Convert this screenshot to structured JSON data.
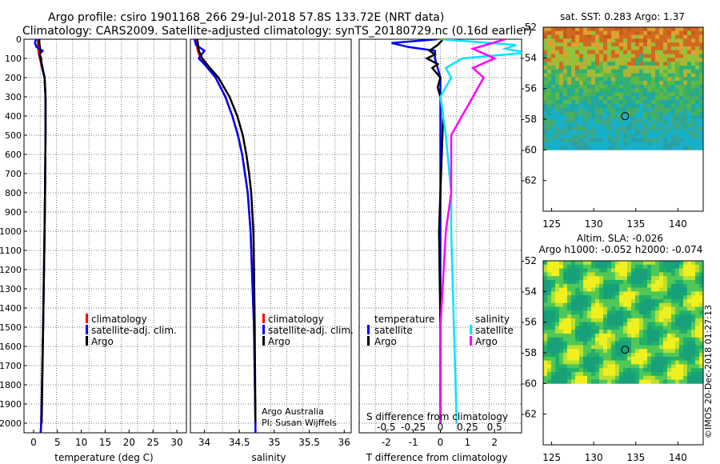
{
  "titles": {
    "line1": "Argo profile: csiro 1901168_266 29-Jul-2018 57.8S 133.72E (NRT data)",
    "line2": "Climatology: CARS2009. Satellite-adjusted climatology: synTS_20180729.nc (0.16d earlier)"
  },
  "colors": {
    "climatology": "#ff0000",
    "satellite_adj": "#0000ff",
    "argo": "#000000",
    "sat_salinity": "#00e5ff",
    "argo_salinity_diff": "#ff00ff",
    "grid": "#888888"
  },
  "depth_axis": {
    "ylim": [
      0,
      2050
    ],
    "ticks": [
      0,
      100,
      200,
      300,
      400,
      500,
      600,
      700,
      800,
      900,
      1000,
      1100,
      1200,
      1300,
      1400,
      1500,
      1600,
      1700,
      1800,
      1900,
      2000
    ]
  },
  "chart_data": [
    {
      "type": "line",
      "name": "temperature-profile",
      "xlabel": "temperature (deg C)",
      "xlim": [
        -2,
        32
      ],
      "xticks": [
        0,
        5,
        10,
        15,
        20,
        25,
        30
      ],
      "legend": {
        "placement": "lower-center",
        "entries": [
          "climatology",
          "satellite-adj. clim.",
          "Argo"
        ]
      },
      "series": [
        {
          "name": "climatology",
          "color": "#ff0000",
          "depth": [
            0,
            30,
            60,
            100,
            150,
            200,
            300,
            500,
            800,
            1000,
            1500,
            2000,
            2050
          ],
          "values": [
            0.9,
            0.9,
            1.0,
            1.3,
            1.8,
            2.3,
            2.5,
            2.5,
            2.4,
            2.3,
            2.0,
            1.6,
            1.5
          ]
        },
        {
          "name": "satellite-adj. clim.",
          "color": "#0000ff",
          "depth": [
            0,
            20,
            40,
            60,
            80,
            100,
            150,
            200,
            300,
            500,
            800,
            1000,
            1500,
            2000,
            2050
          ],
          "values": [
            0.5,
            0.3,
            0.6,
            1.9,
            1.2,
            1.5,
            1.9,
            2.3,
            2.5,
            2.5,
            2.4,
            2.3,
            2.0,
            1.6,
            1.5
          ]
        },
        {
          "name": "Argo",
          "color": "#000000",
          "depth": [
            0,
            20,
            50,
            80,
            100,
            120,
            150,
            200,
            300,
            500,
            800,
            1000,
            1500,
            2000
          ],
          "values": [
            1.2,
            1.2,
            1.4,
            1.3,
            1.6,
            1.6,
            1.8,
            2.3,
            2.5,
            2.5,
            2.4,
            2.3,
            2.0,
            1.7
          ]
        }
      ]
    },
    {
      "type": "line",
      "name": "salinity-profile",
      "xlabel": "salinity",
      "xlim": [
        33.8,
        36.1
      ],
      "xticks": [
        34,
        34.5,
        35,
        35.5,
        36
      ],
      "legend": {
        "placement": "lower-right",
        "entries": [
          "climatology",
          "satellite-adj. clim.",
          "Argo"
        ]
      },
      "annotation": [
        "Argo Australia",
        "PI: Susan Wijffels"
      ],
      "series": [
        {
          "name": "climatology",
          "color": "#ff0000",
          "depth": [
            0,
            50,
            100,
            130,
            200,
            300,
            400,
            500,
            600,
            800,
            1000,
            1500,
            2000,
            2050
          ],
          "values": [
            33.88,
            33.9,
            33.94,
            34.02,
            34.16,
            34.3,
            34.4,
            34.48,
            34.54,
            34.62,
            34.66,
            34.71,
            34.73,
            34.73
          ]
        },
        {
          "name": "satellite-adj. clim.",
          "color": "#0000ff",
          "depth": [
            0,
            30,
            60,
            100,
            130,
            200,
            300,
            400,
            500,
            600,
            800,
            1000,
            1500,
            2000,
            2050
          ],
          "values": [
            33.86,
            33.88,
            34.0,
            33.92,
            34.0,
            34.16,
            34.3,
            34.4,
            34.48,
            34.54,
            34.62,
            34.66,
            34.71,
            34.73,
            34.73
          ]
        },
        {
          "name": "Argo",
          "color": "#000000",
          "depth": [
            0,
            60,
            100,
            150,
            200,
            300,
            400,
            500,
            600,
            700,
            800,
            1000,
            1200,
            1500,
            2000
          ],
          "values": [
            33.9,
            33.92,
            33.97,
            34.08,
            34.2,
            34.36,
            34.47,
            34.55,
            34.6,
            34.64,
            34.67,
            34.7,
            34.71,
            34.72,
            34.73
          ]
        }
      ]
    },
    {
      "type": "line",
      "name": "difference-profile",
      "xlabel": "T difference from climatology",
      "xlim": [
        -3,
        3
      ],
      "xticks": [
        -2,
        -1,
        0,
        1,
        2
      ],
      "top_label": "S difference from climatology",
      "top_ticks": [
        "-0.5",
        "-0.25",
        "0",
        "0.25",
        "0.5"
      ],
      "legend": {
        "placement": "lower",
        "temperature_title": "temperature",
        "salinity_title": "salinity",
        "entries": [
          "satellite",
          "Argo",
          "satellite",
          "Argo"
        ]
      },
      "series": [
        {
          "name": "satellite (T)",
          "color": "#0000ff",
          "depth": [
            0,
            20,
            40,
            60,
            100,
            150,
            200,
            300,
            500,
            1000,
            2000
          ],
          "values": [
            -0.1,
            -1.8,
            -1.2,
            -0.2,
            -0.2,
            -0.1,
            0,
            0,
            0,
            0,
            0
          ]
        },
        {
          "name": "Argo (T)",
          "color": "#000000",
          "depth": [
            0,
            30,
            60,
            80,
            100,
            130,
            150,
            200,
            250,
            300,
            400,
            600,
            1000,
            1500,
            2000
          ],
          "values": [
            0.1,
            -0.1,
            -0.4,
            -0.2,
            -0.5,
            -0.1,
            -0.3,
            0,
            -0.1,
            0,
            0.1,
            0.05,
            -0.05,
            0,
            0
          ]
        },
        {
          "name": "satellite (S)",
          "color": "#00e5ff",
          "depth": [
            0,
            30,
            50,
            70,
            100,
            150,
            200,
            300,
            500,
            800,
            1000,
            2000
          ],
          "values": [
            0,
            0.7,
            0.6,
            0.8,
            0.2,
            0.05,
            0.1,
            0,
            0.05,
            0.1,
            0.1,
            0.15
          ]
        },
        {
          "name": "Argo (S)",
          "color": "#ff00ff",
          "depth": [
            0,
            50,
            100,
            150,
            200,
            300,
            400,
            500,
            800,
            1000,
            1500,
            2000
          ],
          "values": [
            0.6,
            0.3,
            0.5,
            0.3,
            0.4,
            0.3,
            0.2,
            0.1,
            0.1,
            0.05,
            0,
            0
          ]
        }
      ]
    },
    {
      "type": "heatmap",
      "name": "satellite-sst-map",
      "title": "sat. SST: 0.283 Argo: 1.37",
      "xlim": [
        124,
        143
      ],
      "ylim": [
        -64,
        -52
      ],
      "xticks": [
        125,
        130,
        135,
        140
      ],
      "yticks": [
        -52,
        -54,
        -56,
        -58,
        -60,
        -62
      ],
      "data_lat_range": [
        -60,
        -52
      ],
      "argo_position": {
        "lon": 133.72,
        "lat": -57.8
      }
    },
    {
      "type": "heatmap",
      "name": "altimetry-sla-map",
      "title": "Altim. SLA: -0.026",
      "subtitle": "Argo h1000: -0.052 h2000: -0.074",
      "xlim": [
        124,
        143
      ],
      "ylim": [
        -64,
        -52
      ],
      "xticks": [
        125,
        130,
        135,
        140
      ],
      "yticks": [
        -52,
        -54,
        -56,
        -58,
        -60,
        -62
      ],
      "data_lat_range": [
        -60,
        -52
      ],
      "argo_position": {
        "lon": 133.72,
        "lat": -57.8
      }
    }
  ],
  "credit": "©IMOS 20-Dec-2018 01:27:13"
}
